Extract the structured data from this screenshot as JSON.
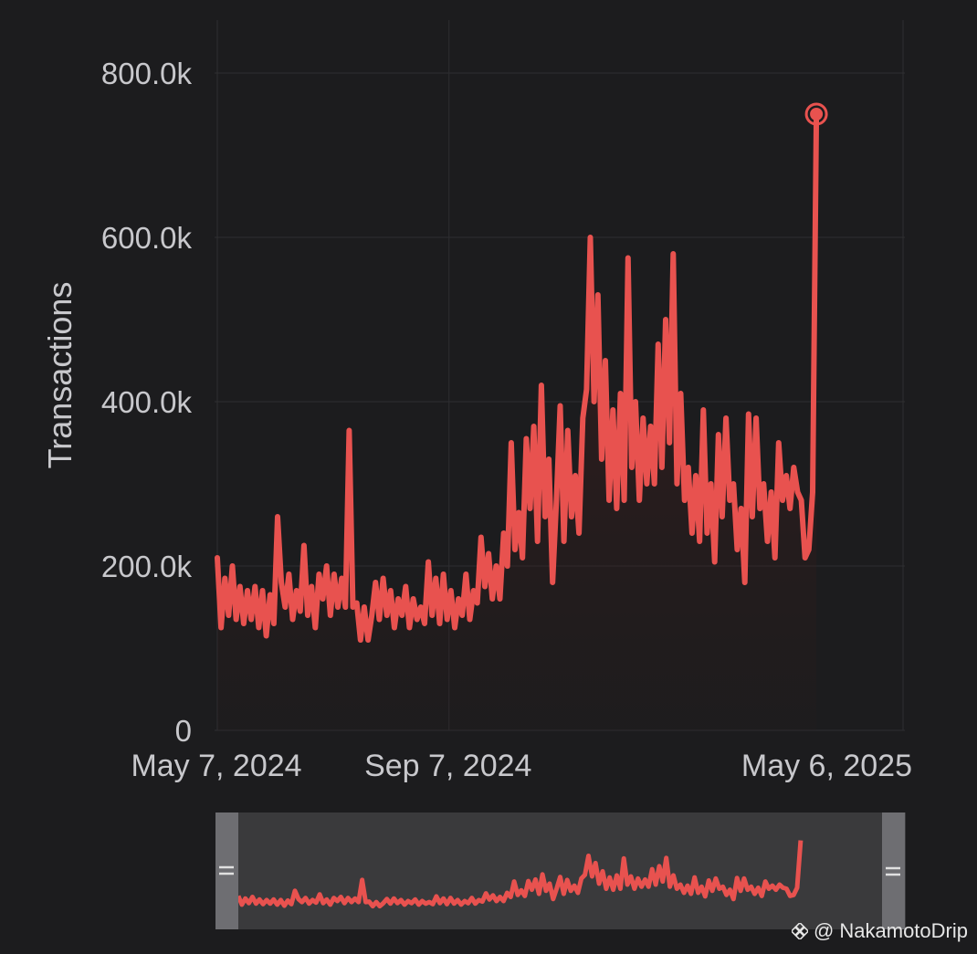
{
  "chart_data": {
    "type": "line",
    "ylabel": "Transactions",
    "xlabel": "",
    "title": "",
    "ylim": [
      0,
      800000
    ],
    "y_ticks": [
      {
        "value": 0,
        "label": "0"
      },
      {
        "value": 200000,
        "label": "200.0k"
      },
      {
        "value": 400000,
        "label": "400.0k"
      },
      {
        "value": 600000,
        "label": "600.0k"
      },
      {
        "value": 800000,
        "label": "800.0k"
      }
    ],
    "x_range": [
      "2024-05-07",
      "2025-05-06"
    ],
    "x_ticks": [
      {
        "date": "2024-05-07",
        "label": "May 7, 2024"
      },
      {
        "date": "2024-09-07",
        "label": "Sep 7, 2024"
      },
      {
        "date": "2025-05-06",
        "label": "May 6, 2025"
      }
    ],
    "grid": true,
    "line_color": "#e8524f",
    "series": [
      {
        "name": "",
        "points": [
          [
            "2024-05-07",
            210000
          ],
          [
            "2024-05-09",
            125000
          ],
          [
            "2024-05-11",
            185000
          ],
          [
            "2024-05-13",
            140000
          ],
          [
            "2024-05-15",
            200000
          ],
          [
            "2024-05-17",
            135000
          ],
          [
            "2024-05-19",
            175000
          ],
          [
            "2024-05-21",
            130000
          ],
          [
            "2024-05-23",
            170000
          ],
          [
            "2024-05-25",
            135000
          ],
          [
            "2024-05-27",
            175000
          ],
          [
            "2024-05-29",
            125000
          ],
          [
            "2024-05-31",
            170000
          ],
          [
            "2024-06-02",
            115000
          ],
          [
            "2024-06-04",
            165000
          ],
          [
            "2024-06-06",
            130000
          ],
          [
            "2024-06-08",
            260000
          ],
          [
            "2024-06-10",
            180000
          ],
          [
            "2024-06-12",
            150000
          ],
          [
            "2024-06-14",
            190000
          ],
          [
            "2024-06-16",
            135000
          ],
          [
            "2024-06-18",
            170000
          ],
          [
            "2024-06-20",
            145000
          ],
          [
            "2024-06-22",
            225000
          ],
          [
            "2024-06-24",
            140000
          ],
          [
            "2024-06-26",
            175000
          ],
          [
            "2024-06-28",
            125000
          ],
          [
            "2024-06-30",
            190000
          ],
          [
            "2024-07-02",
            160000
          ],
          [
            "2024-07-04",
            200000
          ],
          [
            "2024-07-06",
            140000
          ],
          [
            "2024-07-08",
            190000
          ],
          [
            "2024-07-10",
            150000
          ],
          [
            "2024-07-12",
            185000
          ],
          [
            "2024-07-14",
            150000
          ],
          [
            "2024-07-16",
            365000
          ],
          [
            "2024-07-18",
            150000
          ],
          [
            "2024-07-20",
            155000
          ],
          [
            "2024-07-22",
            110000
          ],
          [
            "2024-07-24",
            150000
          ],
          [
            "2024-07-26",
            110000
          ],
          [
            "2024-07-28",
            140000
          ],
          [
            "2024-07-30",
            180000
          ],
          [
            "2024-08-01",
            135000
          ],
          [
            "2024-08-03",
            185000
          ],
          [
            "2024-08-05",
            140000
          ],
          [
            "2024-08-07",
            170000
          ],
          [
            "2024-08-09",
            125000
          ],
          [
            "2024-08-11",
            160000
          ],
          [
            "2024-08-13",
            140000
          ],
          [
            "2024-08-15",
            175000
          ],
          [
            "2024-08-17",
            125000
          ],
          [
            "2024-08-19",
            160000
          ],
          [
            "2024-08-21",
            135000
          ],
          [
            "2024-08-23",
            150000
          ],
          [
            "2024-08-25",
            130000
          ],
          [
            "2024-08-27",
            205000
          ],
          [
            "2024-08-29",
            140000
          ],
          [
            "2024-08-31",
            185000
          ],
          [
            "2024-09-02",
            130000
          ],
          [
            "2024-09-04",
            190000
          ],
          [
            "2024-09-06",
            135000
          ],
          [
            "2024-09-08",
            170000
          ],
          [
            "2024-09-10",
            125000
          ],
          [
            "2024-09-12",
            160000
          ],
          [
            "2024-09-14",
            140000
          ],
          [
            "2024-09-16",
            190000
          ],
          [
            "2024-09-18",
            135000
          ],
          [
            "2024-09-20",
            170000
          ],
          [
            "2024-09-22",
            155000
          ],
          [
            "2024-09-24",
            235000
          ],
          [
            "2024-09-26",
            175000
          ],
          [
            "2024-09-28",
            215000
          ],
          [
            "2024-09-30",
            160000
          ],
          [
            "2024-10-02",
            200000
          ],
          [
            "2024-10-04",
            160000
          ],
          [
            "2024-10-06",
            240000
          ],
          [
            "2024-10-08",
            200000
          ],
          [
            "2024-10-10",
            350000
          ],
          [
            "2024-10-12",
            220000
          ],
          [
            "2024-10-14",
            265000
          ],
          [
            "2024-10-16",
            210000
          ],
          [
            "2024-10-18",
            355000
          ],
          [
            "2024-10-20",
            270000
          ],
          [
            "2024-10-22",
            370000
          ],
          [
            "2024-10-24",
            230000
          ],
          [
            "2024-10-26",
            420000
          ],
          [
            "2024-10-28",
            260000
          ],
          [
            "2024-10-30",
            330000
          ],
          [
            "2024-11-01",
            180000
          ],
          [
            "2024-11-03",
            280000
          ],
          [
            "2024-11-05",
            395000
          ],
          [
            "2024-11-07",
            230000
          ],
          [
            "2024-11-09",
            365000
          ],
          [
            "2024-11-11",
            260000
          ],
          [
            "2024-11-13",
            310000
          ],
          [
            "2024-11-15",
            240000
          ],
          [
            "2024-11-17",
            380000
          ],
          [
            "2024-11-19",
            415000
          ],
          [
            "2024-11-21",
            600000
          ],
          [
            "2024-11-23",
            400000
          ],
          [
            "2024-11-25",
            530000
          ],
          [
            "2024-11-27",
            330000
          ],
          [
            "2024-11-29",
            450000
          ],
          [
            "2024-12-01",
            280000
          ],
          [
            "2024-12-03",
            390000
          ],
          [
            "2024-12-05",
            270000
          ],
          [
            "2024-12-07",
            410000
          ],
          [
            "2024-12-09",
            280000
          ],
          [
            "2024-12-11",
            575000
          ],
          [
            "2024-12-13",
            320000
          ],
          [
            "2024-12-15",
            400000
          ],
          [
            "2024-12-17",
            280000
          ],
          [
            "2024-12-19",
            380000
          ],
          [
            "2024-12-21",
            300000
          ],
          [
            "2024-12-23",
            370000
          ],
          [
            "2024-12-25",
            300000
          ],
          [
            "2024-12-27",
            470000
          ],
          [
            "2024-12-29",
            320000
          ],
          [
            "2024-12-31",
            500000
          ],
          [
            "2025-01-02",
            350000
          ],
          [
            "2025-01-04",
            580000
          ],
          [
            "2025-01-06",
            300000
          ],
          [
            "2025-01-08",
            410000
          ],
          [
            "2025-01-10",
            280000
          ],
          [
            "2025-01-12",
            320000
          ],
          [
            "2025-01-14",
            240000
          ],
          [
            "2025-01-16",
            310000
          ],
          [
            "2025-01-18",
            230000
          ],
          [
            "2025-01-20",
            390000
          ],
          [
            "2025-01-22",
            240000
          ],
          [
            "2025-01-24",
            300000
          ],
          [
            "2025-01-26",
            205000
          ],
          [
            "2025-01-28",
            360000
          ],
          [
            "2025-01-30",
            260000
          ],
          [
            "2025-02-01",
            380000
          ],
          [
            "2025-02-03",
            280000
          ],
          [
            "2025-02-05",
            300000
          ],
          [
            "2025-02-07",
            220000
          ],
          [
            "2025-02-09",
            270000
          ],
          [
            "2025-02-11",
            180000
          ],
          [
            "2025-02-13",
            385000
          ],
          [
            "2025-02-15",
            260000
          ],
          [
            "2025-02-17",
            380000
          ],
          [
            "2025-02-19",
            270000
          ],
          [
            "2025-02-21",
            300000
          ],
          [
            "2025-02-23",
            230000
          ],
          [
            "2025-02-25",
            290000
          ],
          [
            "2025-02-27",
            210000
          ],
          [
            "2025-03-01",
            350000
          ],
          [
            "2025-03-03",
            280000
          ],
          [
            "2025-03-05",
            310000
          ],
          [
            "2025-03-07",
            270000
          ],
          [
            "2025-03-09",
            320000
          ],
          [
            "2025-03-11",
            290000
          ],
          [
            "2025-03-13",
            280000
          ],
          [
            "2025-03-15",
            210000
          ],
          [
            "2025-03-17",
            220000
          ],
          [
            "2025-03-19",
            290000
          ],
          [
            "2025-03-21",
            750000
          ]
        ]
      }
    ],
    "peak_marker": {
      "date": "2025-03-21",
      "value": 750000
    }
  },
  "watermark": {
    "text": "@ NakamotoDrip"
  }
}
